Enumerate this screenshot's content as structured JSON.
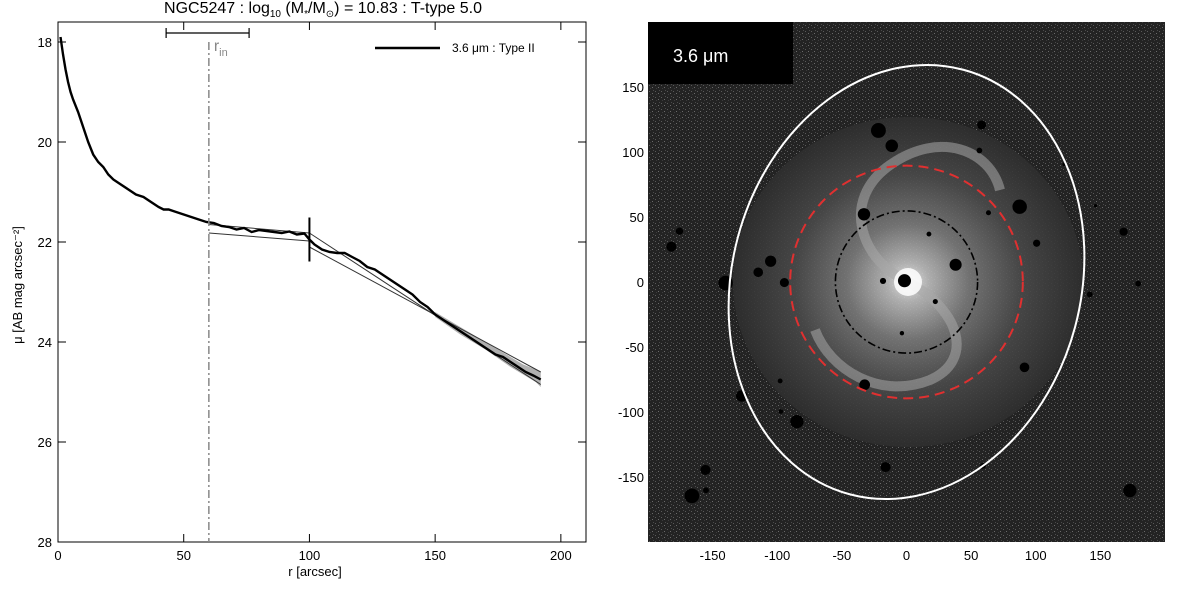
{
  "title": {
    "galaxy": "NGC5247",
    "sep1": " : log",
    "sub10": "10",
    "mass_open": " (M",
    "mass_sub": "*",
    "mass_mid": "/M",
    "mass_sub2": "⊙",
    "mass_val": ") = 10.83",
    "sep2": " : T-type 5.0"
  },
  "chart_data": [
    {
      "type": "line",
      "xlabel": "r [arcsec]",
      "ylabel": "μ [AB mag arcsec⁻²]",
      "xlim": [
        0,
        210
      ],
      "ylim": [
        28,
        17.6
      ],
      "y_inverted": true,
      "x_ticks": [
        0,
        50,
        100,
        150,
        200
      ],
      "y_ticks": [
        18,
        20,
        22,
        24,
        26,
        28
      ],
      "legend": {
        "label": "3.6 μm : Type II",
        "position": "top-right"
      },
      "r_in": {
        "label": "r",
        "label_sub": "in",
        "value": 60,
        "err_low": 43,
        "err_high": 76
      },
      "break_radius": 100,
      "series": [
        {
          "name": "3.6 μm : Type II",
          "x": [
            1,
            2,
            3,
            4,
            5,
            6,
            8,
            10,
            12,
            14,
            16,
            18,
            20,
            22,
            25,
            28,
            31,
            34,
            37,
            40,
            42,
            44,
            47,
            50,
            53,
            56,
            59,
            62,
            65,
            68,
            71,
            74,
            77,
            80,
            83,
            86,
            89,
            92,
            95,
            98,
            100,
            102,
            105,
            108,
            111,
            114,
            117,
            120,
            123,
            126,
            129,
            132,
            135,
            138,
            141,
            144,
            147,
            150,
            153,
            156,
            159,
            162,
            165,
            168,
            171,
            174,
            177,
            180,
            183,
            186,
            189,
            192
          ],
          "y": [
            17.9,
            18.25,
            18.55,
            18.8,
            19.0,
            19.15,
            19.4,
            19.7,
            20.0,
            20.25,
            20.4,
            20.5,
            20.65,
            20.75,
            20.85,
            20.95,
            21.05,
            21.1,
            21.2,
            21.3,
            21.35,
            21.35,
            21.4,
            21.45,
            21.5,
            21.55,
            21.6,
            21.62,
            21.68,
            21.7,
            21.75,
            21.72,
            21.8,
            21.76,
            21.78,
            21.8,
            21.82,
            21.79,
            21.85,
            21.83,
            21.95,
            22.05,
            22.15,
            22.2,
            22.22,
            22.22,
            22.3,
            22.38,
            22.5,
            22.55,
            22.65,
            22.75,
            22.85,
            22.95,
            23.05,
            23.2,
            23.3,
            23.45,
            23.55,
            23.65,
            23.75,
            23.85,
            23.95,
            24.05,
            24.15,
            24.25,
            24.3,
            24.4,
            24.5,
            24.6,
            24.67,
            24.75
          ]
        }
      ],
      "error_band": {
        "x": [
          150,
          160,
          170,
          180,
          185,
          190,
          192
        ],
        "y_low": [
          23.4,
          23.7,
          24.0,
          24.3,
          24.45,
          24.55,
          24.6
        ],
        "y_high": [
          23.5,
          23.85,
          24.15,
          24.5,
          24.65,
          24.8,
          24.9
        ]
      },
      "fits": [
        {
          "x": [
            60,
            100
          ],
          "y": [
            21.65,
            21.82
          ]
        },
        {
          "x": [
            60,
            100
          ],
          "y": [
            21.82,
            21.98
          ]
        },
        {
          "x": [
            100,
            192
          ],
          "y": [
            21.82,
            24.85
          ]
        },
        {
          "x": [
            100,
            192
          ],
          "y": [
            22.1,
            24.6
          ]
        }
      ]
    },
    {
      "type": "image",
      "band_label": "3.6 μm",
      "xlim": [
        -200,
        200
      ],
      "ylim": [
        -200,
        200
      ],
      "x_ticks": [
        -150,
        -100,
        -50,
        0,
        50,
        100,
        150
      ],
      "y_ticks": [
        150,
        100,
        50,
        0,
        -50,
        -100,
        -150
      ],
      "ellipses": [
        {
          "name": "outer",
          "color": "#ffffff",
          "style": "solid",
          "rx": 135,
          "ry": 170,
          "rotate_deg": 15
        },
        {
          "name": "break",
          "color": "#e03030",
          "style": "dashed",
          "rx": 90,
          "ry": 90,
          "rotate_deg": 0
        },
        {
          "name": "inner",
          "color": "#000000",
          "style": "dash-dot",
          "rx": 55,
          "ry": 55,
          "rotate_deg": 0
        }
      ]
    }
  ]
}
